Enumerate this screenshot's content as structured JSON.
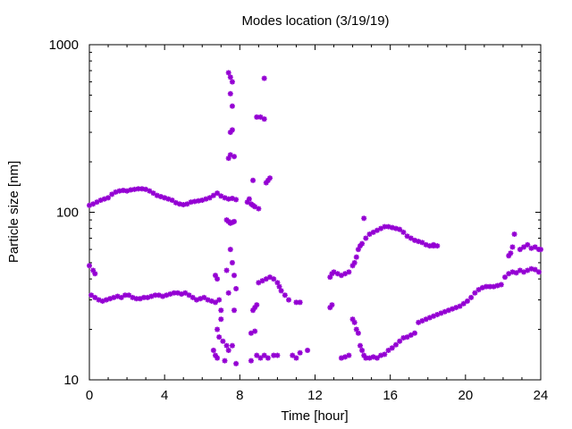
{
  "chart_data": {
    "type": "scatter",
    "title": "Modes location (3/19/19)",
    "xlabel": "Time [hour]",
    "ylabel": "Particle size [nm]",
    "xlim": [
      0,
      24
    ],
    "ylim": [
      10,
      1000
    ],
    "yscale": "log",
    "grid": false,
    "legend": "none",
    "marker_color": "#9400d3",
    "x_ticks": [
      0,
      4,
      8,
      12,
      16,
      20,
      24
    ],
    "x_tick_labels": [
      "0",
      "4",
      "8",
      "12",
      "16",
      "20",
      "24"
    ],
    "y_ticks": [
      10,
      100,
      1000
    ],
    "y_tick_labels": [
      "10",
      "100",
      "1000"
    ],
    "series": [
      {
        "points": [
          [
            0.0,
            110
          ],
          [
            0.2,
            112
          ],
          [
            0.4,
            115
          ],
          [
            0.6,
            118
          ],
          [
            0.8,
            120
          ],
          [
            1.0,
            122
          ],
          [
            1.2,
            128
          ],
          [
            1.4,
            132
          ],
          [
            1.6,
            134
          ],
          [
            1.8,
            135
          ],
          [
            2.0,
            134
          ],
          [
            2.2,
            136
          ],
          [
            2.4,
            137
          ],
          [
            2.6,
            138
          ],
          [
            2.8,
            138
          ],
          [
            3.0,
            137
          ],
          [
            3.2,
            134
          ],
          [
            3.4,
            130
          ],
          [
            3.6,
            126
          ],
          [
            3.8,
            124
          ],
          [
            4.0,
            122
          ],
          [
            4.2,
            120
          ],
          [
            4.4,
            118
          ],
          [
            4.6,
            114
          ],
          [
            4.8,
            112
          ],
          [
            5.0,
            111
          ],
          [
            5.2,
            112
          ],
          [
            5.4,
            115
          ],
          [
            5.6,
            116
          ],
          [
            5.8,
            117
          ],
          [
            6.0,
            118
          ],
          [
            6.2,
            120
          ],
          [
            6.4,
            122
          ],
          [
            6.6,
            126
          ],
          [
            6.8,
            130
          ],
          [
            7.0,
            125
          ],
          [
            7.2,
            122
          ],
          [
            7.4,
            120
          ],
          [
            7.6,
            121
          ],
          [
            7.8,
            119
          ],
          [
            0.0,
            48
          ],
          [
            0.2,
            45
          ],
          [
            0.3,
            43
          ],
          [
            0.1,
            32
          ],
          [
            0.3,
            31
          ],
          [
            0.5,
            30
          ],
          [
            0.7,
            29.5
          ],
          [
            0.9,
            30
          ],
          [
            1.1,
            30.5
          ],
          [
            1.3,
            31
          ],
          [
            1.5,
            31.5
          ],
          [
            1.7,
            31
          ],
          [
            1.9,
            32
          ],
          [
            2.1,
            32
          ],
          [
            2.3,
            31
          ],
          [
            2.5,
            30.5
          ],
          [
            2.7,
            30.5
          ],
          [
            2.9,
            31
          ],
          [
            3.1,
            31
          ],
          [
            3.3,
            31.5
          ],
          [
            3.5,
            32
          ],
          [
            3.7,
            32
          ],
          [
            3.9,
            31.5
          ],
          [
            4.1,
            32
          ],
          [
            4.3,
            32.5
          ],
          [
            4.5,
            33
          ],
          [
            4.7,
            33
          ],
          [
            4.9,
            32.5
          ],
          [
            5.1,
            33
          ],
          [
            5.3,
            32
          ],
          [
            5.5,
            31
          ],
          [
            5.7,
            30
          ],
          [
            5.9,
            30.5
          ],
          [
            6.1,
            31
          ],
          [
            6.3,
            30
          ],
          [
            6.5,
            29.5
          ],
          [
            6.7,
            29
          ],
          [
            6.9,
            30
          ],
          [
            6.7,
            42
          ],
          [
            6.8,
            40
          ],
          [
            6.6,
            15
          ],
          [
            6.7,
            14
          ],
          [
            6.8,
            13.5
          ],
          [
            6.9,
            18
          ],
          [
            7.0,
            23
          ],
          [
            7.0,
            26
          ],
          [
            6.8,
            20
          ],
          [
            7.1,
            17
          ],
          [
            7.2,
            13
          ],
          [
            7.3,
            16
          ],
          [
            7.4,
            15
          ],
          [
            7.4,
            680
          ],
          [
            7.5,
            640
          ],
          [
            7.6,
            600
          ],
          [
            7.6,
            430
          ],
          [
            7.5,
            510
          ],
          [
            7.5,
            300
          ],
          [
            7.6,
            310
          ],
          [
            7.4,
            210
          ],
          [
            7.5,
            220
          ],
          [
            7.7,
            215
          ],
          [
            7.3,
            90
          ],
          [
            7.4,
            88
          ],
          [
            7.5,
            86
          ],
          [
            7.6,
            87
          ],
          [
            7.7,
            88
          ],
          [
            7.5,
            60
          ],
          [
            7.6,
            50
          ],
          [
            7.7,
            42
          ],
          [
            7.8,
            35
          ],
          [
            7.7,
            26
          ],
          [
            7.6,
            16
          ],
          [
            7.8,
            12.5
          ],
          [
            7.4,
            33
          ],
          [
            7.3,
            45
          ],
          [
            8.4,
            115
          ],
          [
            8.5,
            120
          ],
          [
            8.6,
            112
          ],
          [
            8.7,
            110
          ],
          [
            8.8,
            108
          ],
          [
            9.0,
            105
          ],
          [
            8.7,
            155
          ],
          [
            8.9,
            370
          ],
          [
            9.1,
            370
          ],
          [
            9.3,
            360
          ],
          [
            9.3,
            630
          ],
          [
            9.5,
            155
          ],
          [
            9.6,
            160
          ],
          [
            9.4,
            150
          ],
          [
            8.8,
            27
          ],
          [
            8.9,
            28
          ],
          [
            8.7,
            26
          ],
          [
            9.0,
            38
          ],
          [
            9.2,
            39
          ],
          [
            9.4,
            40
          ],
          [
            9.6,
            41
          ],
          [
            9.8,
            40
          ],
          [
            10.0,
            38
          ],
          [
            10.1,
            36
          ],
          [
            10.2,
            34
          ],
          [
            10.4,
            32
          ],
          [
            10.6,
            30
          ],
          [
            8.6,
            19
          ],
          [
            8.8,
            19.5
          ],
          [
            8.6,
            13
          ],
          [
            8.9,
            14
          ],
          [
            9.1,
            13.5
          ],
          [
            9.3,
            14
          ],
          [
            9.5,
            13.5
          ],
          [
            9.8,
            14
          ],
          [
            10.0,
            14
          ],
          [
            10.8,
            14
          ],
          [
            11.0,
            13.5
          ],
          [
            11.2,
            14.5
          ],
          [
            11.6,
            15
          ],
          [
            11.0,
            29
          ],
          [
            11.2,
            29
          ],
          [
            12.8,
            41
          ],
          [
            12.9,
            43
          ],
          [
            13.0,
            44
          ],
          [
            13.2,
            43
          ],
          [
            13.4,
            42
          ],
          [
            13.6,
            43
          ],
          [
            13.8,
            44
          ],
          [
            14.0,
            48
          ],
          [
            14.1,
            50
          ],
          [
            14.2,
            54
          ],
          [
            14.3,
            60
          ],
          [
            14.4,
            63
          ],
          [
            14.5,
            65
          ],
          [
            14.6,
            92
          ],
          [
            14.7,
            70
          ],
          [
            14.9,
            74
          ],
          [
            15.1,
            76
          ],
          [
            15.3,
            78
          ],
          [
            15.5,
            80
          ],
          [
            15.7,
            82
          ],
          [
            15.9,
            82
          ],
          [
            16.1,
            81
          ],
          [
            16.3,
            80
          ],
          [
            16.5,
            79
          ],
          [
            16.7,
            76
          ],
          [
            16.9,
            72
          ],
          [
            17.1,
            70
          ],
          [
            17.3,
            68
          ],
          [
            17.5,
            67
          ],
          [
            17.7,
            66
          ],
          [
            17.9,
            64
          ],
          [
            18.1,
            63
          ],
          [
            18.3,
            63
          ],
          [
            18.5,
            63
          ],
          [
            18.3,
            64
          ],
          [
            12.8,
            27
          ],
          [
            12.9,
            28
          ],
          [
            13.4,
            13.5
          ],
          [
            13.6,
            13.7
          ],
          [
            13.8,
            14
          ],
          [
            14.0,
            23
          ],
          [
            14.1,
            22
          ],
          [
            14.2,
            20
          ],
          [
            14.3,
            19
          ],
          [
            14.4,
            16
          ],
          [
            14.5,
            15
          ],
          [
            14.6,
            14
          ],
          [
            14.7,
            13.5
          ],
          [
            14.9,
            13.5
          ],
          [
            15.1,
            13.7
          ],
          [
            15.3,
            13.5
          ],
          [
            15.5,
            14
          ],
          [
            15.7,
            14.2
          ],
          [
            15.9,
            15
          ],
          [
            16.1,
            15.5
          ],
          [
            16.3,
            16.2
          ],
          [
            16.5,
            17
          ],
          [
            16.7,
            17.8
          ],
          [
            16.9,
            18
          ],
          [
            17.1,
            18.5
          ],
          [
            17.3,
            19
          ],
          [
            17.5,
            22
          ],
          [
            17.7,
            22.5
          ],
          [
            17.9,
            23
          ],
          [
            18.1,
            23.5
          ],
          [
            18.3,
            24
          ],
          [
            18.5,
            24.5
          ],
          [
            18.7,
            25
          ],
          [
            18.9,
            25.5
          ],
          [
            19.1,
            26
          ],
          [
            19.3,
            26.5
          ],
          [
            19.5,
            27
          ],
          [
            19.7,
            27.5
          ],
          [
            19.9,
            28.5
          ],
          [
            20.1,
            29.5
          ],
          [
            20.3,
            31
          ],
          [
            20.5,
            33
          ],
          [
            20.7,
            34.5
          ],
          [
            20.9,
            35.5
          ],
          [
            21.1,
            36
          ],
          [
            21.3,
            36
          ],
          [
            21.5,
            36
          ],
          [
            21.7,
            36.5
          ],
          [
            21.9,
            37
          ],
          [
            22.1,
            41
          ],
          [
            22.3,
            43
          ],
          [
            22.5,
            44
          ],
          [
            22.7,
            43.5
          ],
          [
            22.9,
            45
          ],
          [
            23.1,
            44
          ],
          [
            23.3,
            45
          ],
          [
            23.5,
            46
          ],
          [
            23.7,
            45.5
          ],
          [
            23.9,
            44
          ],
          [
            22.3,
            55
          ],
          [
            22.4,
            57
          ],
          [
            22.5,
            62
          ],
          [
            22.6,
            74
          ],
          [
            22.9,
            60
          ],
          [
            23.1,
            62
          ],
          [
            23.3,
            64
          ],
          [
            23.5,
            61
          ],
          [
            23.7,
            62
          ],
          [
            23.9,
            60
          ],
          [
            24.0,
            60
          ]
        ]
      }
    ]
  }
}
